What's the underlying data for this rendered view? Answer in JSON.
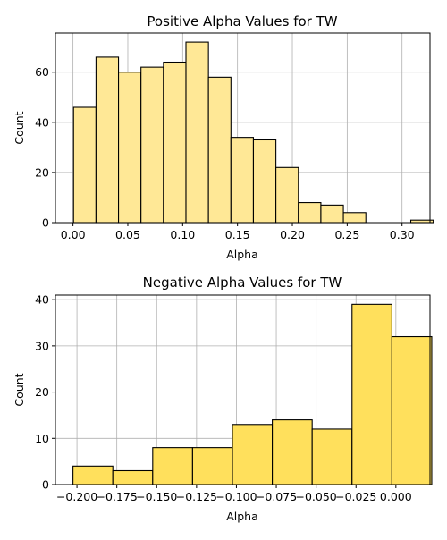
{
  "chart_data": [
    {
      "type": "bar",
      "title": "Positive Alpha Values for TW",
      "xlabel": "Alpha",
      "ylabel": "Count",
      "bar_color": "#ffe896",
      "edge_color": "#000000",
      "grid": true,
      "xlim": [
        -0.016,
        0.3255
      ],
      "ylim": [
        0,
        75.6
      ],
      "xticks": [
        0.0,
        0.05,
        0.1,
        0.15,
        0.2,
        0.25,
        0.3
      ],
      "xtick_labels": [
        "0.00",
        "0.05",
        "0.10",
        "0.15",
        "0.20",
        "0.25",
        "0.30"
      ],
      "yticks": [
        0,
        20,
        40,
        60
      ],
      "ytick_labels": [
        "0",
        "20",
        "40",
        "60"
      ],
      "bins": [
        {
          "x0": 0.0005,
          "x1": 0.021,
          "count": 46
        },
        {
          "x0": 0.021,
          "x1": 0.0415,
          "count": 66
        },
        {
          "x0": 0.0415,
          "x1": 0.062,
          "count": 60
        },
        {
          "x0": 0.062,
          "x1": 0.0825,
          "count": 62
        },
        {
          "x0": 0.0825,
          "x1": 0.103,
          "count": 64
        },
        {
          "x0": 0.103,
          "x1": 0.1235,
          "count": 72
        },
        {
          "x0": 0.1235,
          "x1": 0.144,
          "count": 58
        },
        {
          "x0": 0.144,
          "x1": 0.1645,
          "count": 34
        },
        {
          "x0": 0.1645,
          "x1": 0.185,
          "count": 33
        },
        {
          "x0": 0.185,
          "x1": 0.2055,
          "count": 22
        },
        {
          "x0": 0.2055,
          "x1": 0.226,
          "count": 8
        },
        {
          "x0": 0.226,
          "x1": 0.2465,
          "count": 7
        },
        {
          "x0": 0.2465,
          "x1": 0.267,
          "count": 4
        },
        {
          "x0": 0.267,
          "x1": 0.2875,
          "count": 0
        },
        {
          "x0": 0.2875,
          "x1": 0.308,
          "count": 0
        },
        {
          "x0": 0.308,
          "x1": 0.3285,
          "count": 1
        }
      ]
    },
    {
      "type": "bar",
      "title": "Negative Alpha Values for TW",
      "xlabel": "Alpha",
      "ylabel": "Count",
      "bar_color": "#ffe05c",
      "edge_color": "#000000",
      "grid": true,
      "xlim": [
        -0.2135,
        0.0214
      ],
      "ylim": [
        0,
        41
      ],
      "xticks": [
        -0.2,
        -0.175,
        -0.15,
        -0.125,
        -0.1,
        -0.075,
        -0.05,
        -0.025,
        0.0
      ],
      "xtick_labels": [
        "−0.200",
        "−0.175",
        "−0.150",
        "−0.125",
        "−0.100",
        "−0.075",
        "−0.050",
        "−0.025",
        "0.000"
      ],
      "yticks": [
        0,
        10,
        20,
        30,
        40
      ],
      "ytick_labels": [
        "0",
        "10",
        "20",
        "30",
        "40"
      ],
      "bins": [
        {
          "x0": -0.2025,
          "x1": -0.1775,
          "count": 4
        },
        {
          "x0": -0.1775,
          "x1": -0.1525,
          "count": 3
        },
        {
          "x0": -0.1525,
          "x1": -0.1275,
          "count": 8
        },
        {
          "x0": -0.1275,
          "x1": -0.1025,
          "count": 8
        },
        {
          "x0": -0.1025,
          "x1": -0.0775,
          "count": 13
        },
        {
          "x0": -0.0775,
          "x1": -0.0525,
          "count": 14
        },
        {
          "x0": -0.0525,
          "x1": -0.0275,
          "count": 12
        },
        {
          "x0": -0.0275,
          "x1": -0.0025,
          "count": 39
        },
        {
          "x0": -0.0025,
          "x1": 0.0225,
          "count": 32
        }
      ]
    }
  ]
}
